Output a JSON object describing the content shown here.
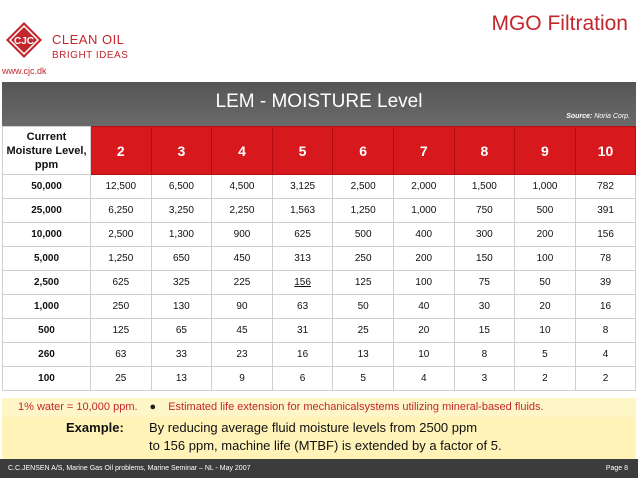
{
  "header": {
    "logo_text": "CJC",
    "brand_line1": "CLEAN OIL",
    "brand_line2": "BRIGHT IDEAS",
    "website": "www.cjc.dk",
    "slide_title": "MGO Filtration",
    "brand_color": "#c1272d"
  },
  "banner": {
    "title": "LEM - MOISTURE Level",
    "source_label": "Source:",
    "source_value": "Noria Corp."
  },
  "table": {
    "corner_label": "Current Moisture Level, ppm",
    "columns": [
      "2",
      "3",
      "4",
      "5",
      "6",
      "7",
      "8",
      "9",
      "10"
    ],
    "rows": [
      {
        "level": "50,000",
        "values": [
          "12,500",
          "6,500",
          "4,500",
          "3,125",
          "2,500",
          "2,000",
          "1,500",
          "1,000",
          "782"
        ]
      },
      {
        "level": "25,000",
        "values": [
          "6,250",
          "3,250",
          "2,250",
          "1,563",
          "1,250",
          "1,000",
          "750",
          "500",
          "391"
        ]
      },
      {
        "level": "10,000",
        "values": [
          "2,500",
          "1,300",
          "900",
          "625",
          "500",
          "400",
          "300",
          "200",
          "156"
        ]
      },
      {
        "level": "5,000",
        "values": [
          "1,250",
          "650",
          "450",
          "313",
          "250",
          "200",
          "150",
          "100",
          "78"
        ]
      },
      {
        "level": "2,500",
        "values": [
          "625",
          "325",
          "225",
          "156",
          "125",
          "100",
          "75",
          "50",
          "39"
        ]
      },
      {
        "level": "1,000",
        "values": [
          "250",
          "130",
          "90",
          "63",
          "50",
          "40",
          "30",
          "20",
          "16"
        ]
      },
      {
        "level": "500",
        "values": [
          "125",
          "65",
          "45",
          "31",
          "25",
          "20",
          "15",
          "10",
          "8"
        ]
      },
      {
        "level": "260",
        "values": [
          "63",
          "33",
          "23",
          "16",
          "13",
          "10",
          "8",
          "5",
          "4"
        ]
      },
      {
        "level": "100",
        "values": [
          "25",
          "13",
          "9",
          "6",
          "5",
          "4",
          "3",
          "2",
          "2"
        ]
      }
    ],
    "header_color": "#d7181c"
  },
  "note": {
    "left": "1% water = 10,000 ppm.",
    "bullet": "●",
    "right": "Estimated life extension for mechanicalsystems utilizing mineral-based fluids."
  },
  "example": {
    "label": "Example:",
    "line1": "By reducing average fluid moisture levels from 2500 ppm",
    "line2": "to 156 ppm, machine life (MTBF) is extended by a factor of 5."
  },
  "footer": {
    "left": "C.C.JENSEN A/S,  Marine Gas Oil problems, Marine Seminar – NL - May 2007",
    "right": "Page 8"
  }
}
